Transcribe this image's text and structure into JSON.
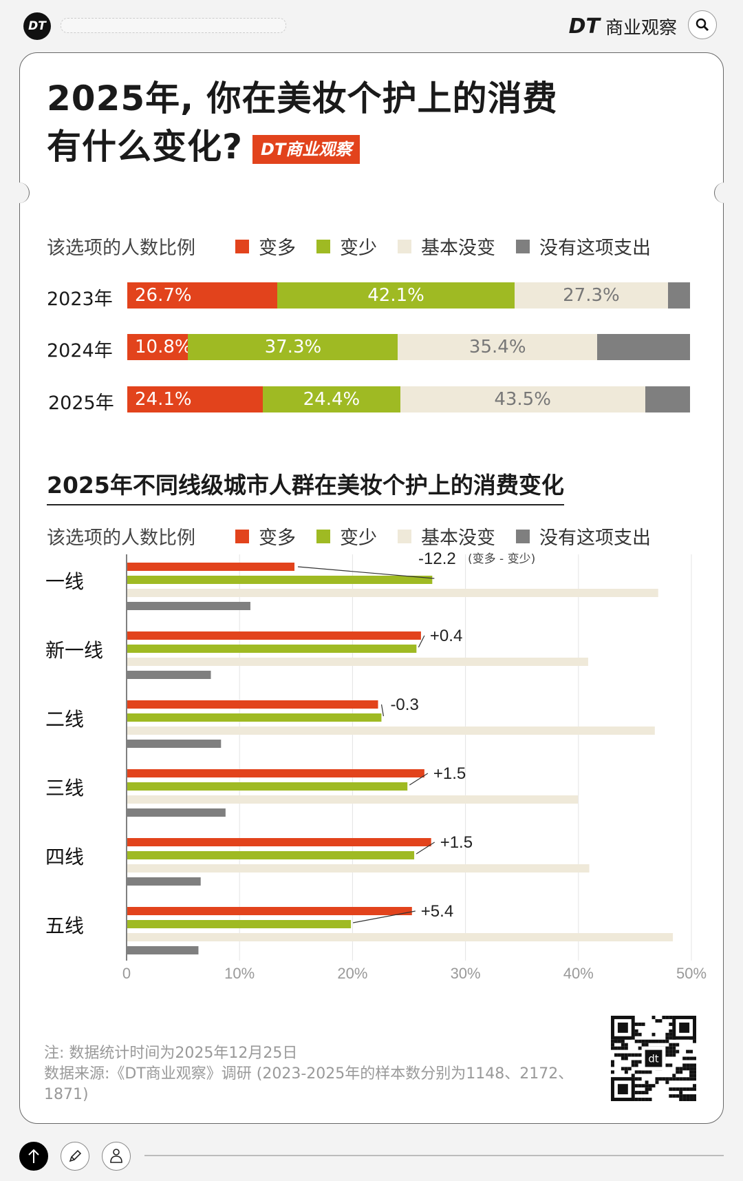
{
  "header": {
    "logo_text": "DT",
    "brand_dt": "DT",
    "brand_name": "商业观察",
    "search_icon": "search-icon"
  },
  "title": {
    "line1": "2025年, 你在美妆个护上的消费",
    "line2": "有什么变化?",
    "badge": "DT商业观察"
  },
  "colors": {
    "more": "#e2431c",
    "less": "#9fba23",
    "same": "#efe9d9",
    "none": "#7f7f7f"
  },
  "chart_data": [
    {
      "type": "bar",
      "stacked": true,
      "orientation": "horizontal",
      "legend_label": "该选项的人数比例",
      "legend_placement": "top",
      "categories": [
        "2023年",
        "2024年",
        "2025年"
      ],
      "series": [
        {
          "name": "变多",
          "values": [
            26.7,
            10.8,
            24.1
          ],
          "labels": [
            "26.7%",
            "10.8%",
            "24.1%"
          ]
        },
        {
          "name": "变少",
          "values": [
            42.1,
            37.3,
            24.4
          ],
          "labels": [
            "42.1%",
            "37.3%",
            "24.4%"
          ]
        },
        {
          "name": "基本没变",
          "values": [
            27.3,
            35.4,
            43.5
          ],
          "labels": [
            "27.3%",
            "35.4%",
            "43.5%"
          ]
        },
        {
          "name": "没有这项支出",
          "values": [
            3.9,
            16.5,
            8.0
          ],
          "labels": [
            "",
            "",
            ""
          ]
        }
      ],
      "xlim": [
        0,
        100
      ]
    },
    {
      "type": "bar",
      "orientation": "horizontal",
      "title": "2025年不同线级城市人群在美妆个护上的消费变化",
      "legend_label": "该选项的人数比例",
      "legend_placement": "top",
      "categories": [
        "一线",
        "新一线",
        "二线",
        "三线",
        "四线",
        "五线"
      ],
      "series": [
        {
          "name": "变多",
          "values": [
            14.8,
            26.0,
            22.2,
            26.3,
            26.9,
            25.2
          ]
        },
        {
          "name": "变少",
          "values": [
            27.0,
            25.6,
            22.5,
            24.8,
            25.4,
            19.8
          ]
        },
        {
          "name": "基本没变",
          "values": [
            47.0,
            40.8,
            46.7,
            39.9,
            40.9,
            48.3
          ]
        },
        {
          "name": "没有这项支出",
          "values": [
            10.9,
            7.4,
            8.3,
            8.7,
            6.5,
            6.3
          ]
        }
      ],
      "annotations": [
        "-12.2",
        "+0.4",
        "-0.3",
        "+1.5",
        "+1.5",
        "+5.4"
      ],
      "annotation_note": "(变多 - 变少)",
      "xlim": [
        0,
        50
      ],
      "xticks": [
        "0",
        "10%",
        "20%",
        "30%",
        "40%",
        "50%"
      ],
      "grid": true
    }
  ],
  "footer": {
    "note": "注: 数据统计时间为2025年12月25日",
    "source": "数据来源:《DT商业观察》调研 (2023-2025年的样本数分别为1148、2172、1871)",
    "qr_label": "dt"
  }
}
